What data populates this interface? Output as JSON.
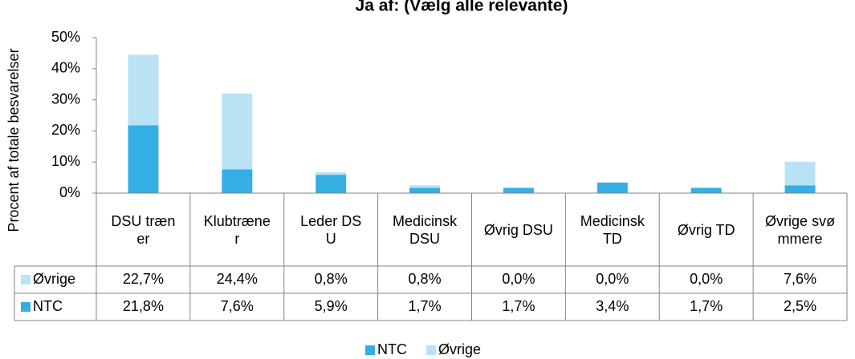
{
  "chart_data": {
    "type": "bar",
    "stacked": true,
    "title": "Ja af: (Vælg alle relevante)",
    "y_label": "Procent af totale besvarelser",
    "categories": [
      "DSU træner",
      "Klubtræner",
      "Leder DSU",
      "Medicinsk DSU",
      "Øvrig DSU",
      "Medicinsk TD",
      "Øvrig TD",
      "Øvrige svømmere"
    ],
    "series": [
      {
        "name": "NTC",
        "color": "#35aee4",
        "values": [
          21.8,
          7.6,
          5.9,
          1.7,
          1.7,
          3.4,
          1.7,
          2.5
        ],
        "value_labels": [
          "21,8%",
          "7,6%",
          "5,9%",
          "1,7%",
          "1,7%",
          "3,4%",
          "1,7%",
          "2,5%"
        ]
      },
      {
        "name": "Øvrige",
        "color": "#b9e2f5",
        "values": [
          22.7,
          24.4,
          0.8,
          0.8,
          0.0,
          0.0,
          0.0,
          7.6
        ],
        "value_labels": [
          "22,7%",
          "24,4%",
          "0,8%",
          "0,8%",
          "0,0%",
          "0,0%",
          "0,0%",
          "7,6%"
        ]
      }
    ],
    "ylim": [
      0,
      50
    ],
    "yticks": [
      {
        "value": 0,
        "label": "0%"
      },
      {
        "value": 10,
        "label": "10%"
      },
      {
        "value": 20,
        "label": "20%"
      },
      {
        "value": 30,
        "label": "30%"
      },
      {
        "value": 40,
        "label": "40%"
      },
      {
        "value": 50,
        "label": "50%"
      }
    ],
    "legend": "bottom"
  }
}
